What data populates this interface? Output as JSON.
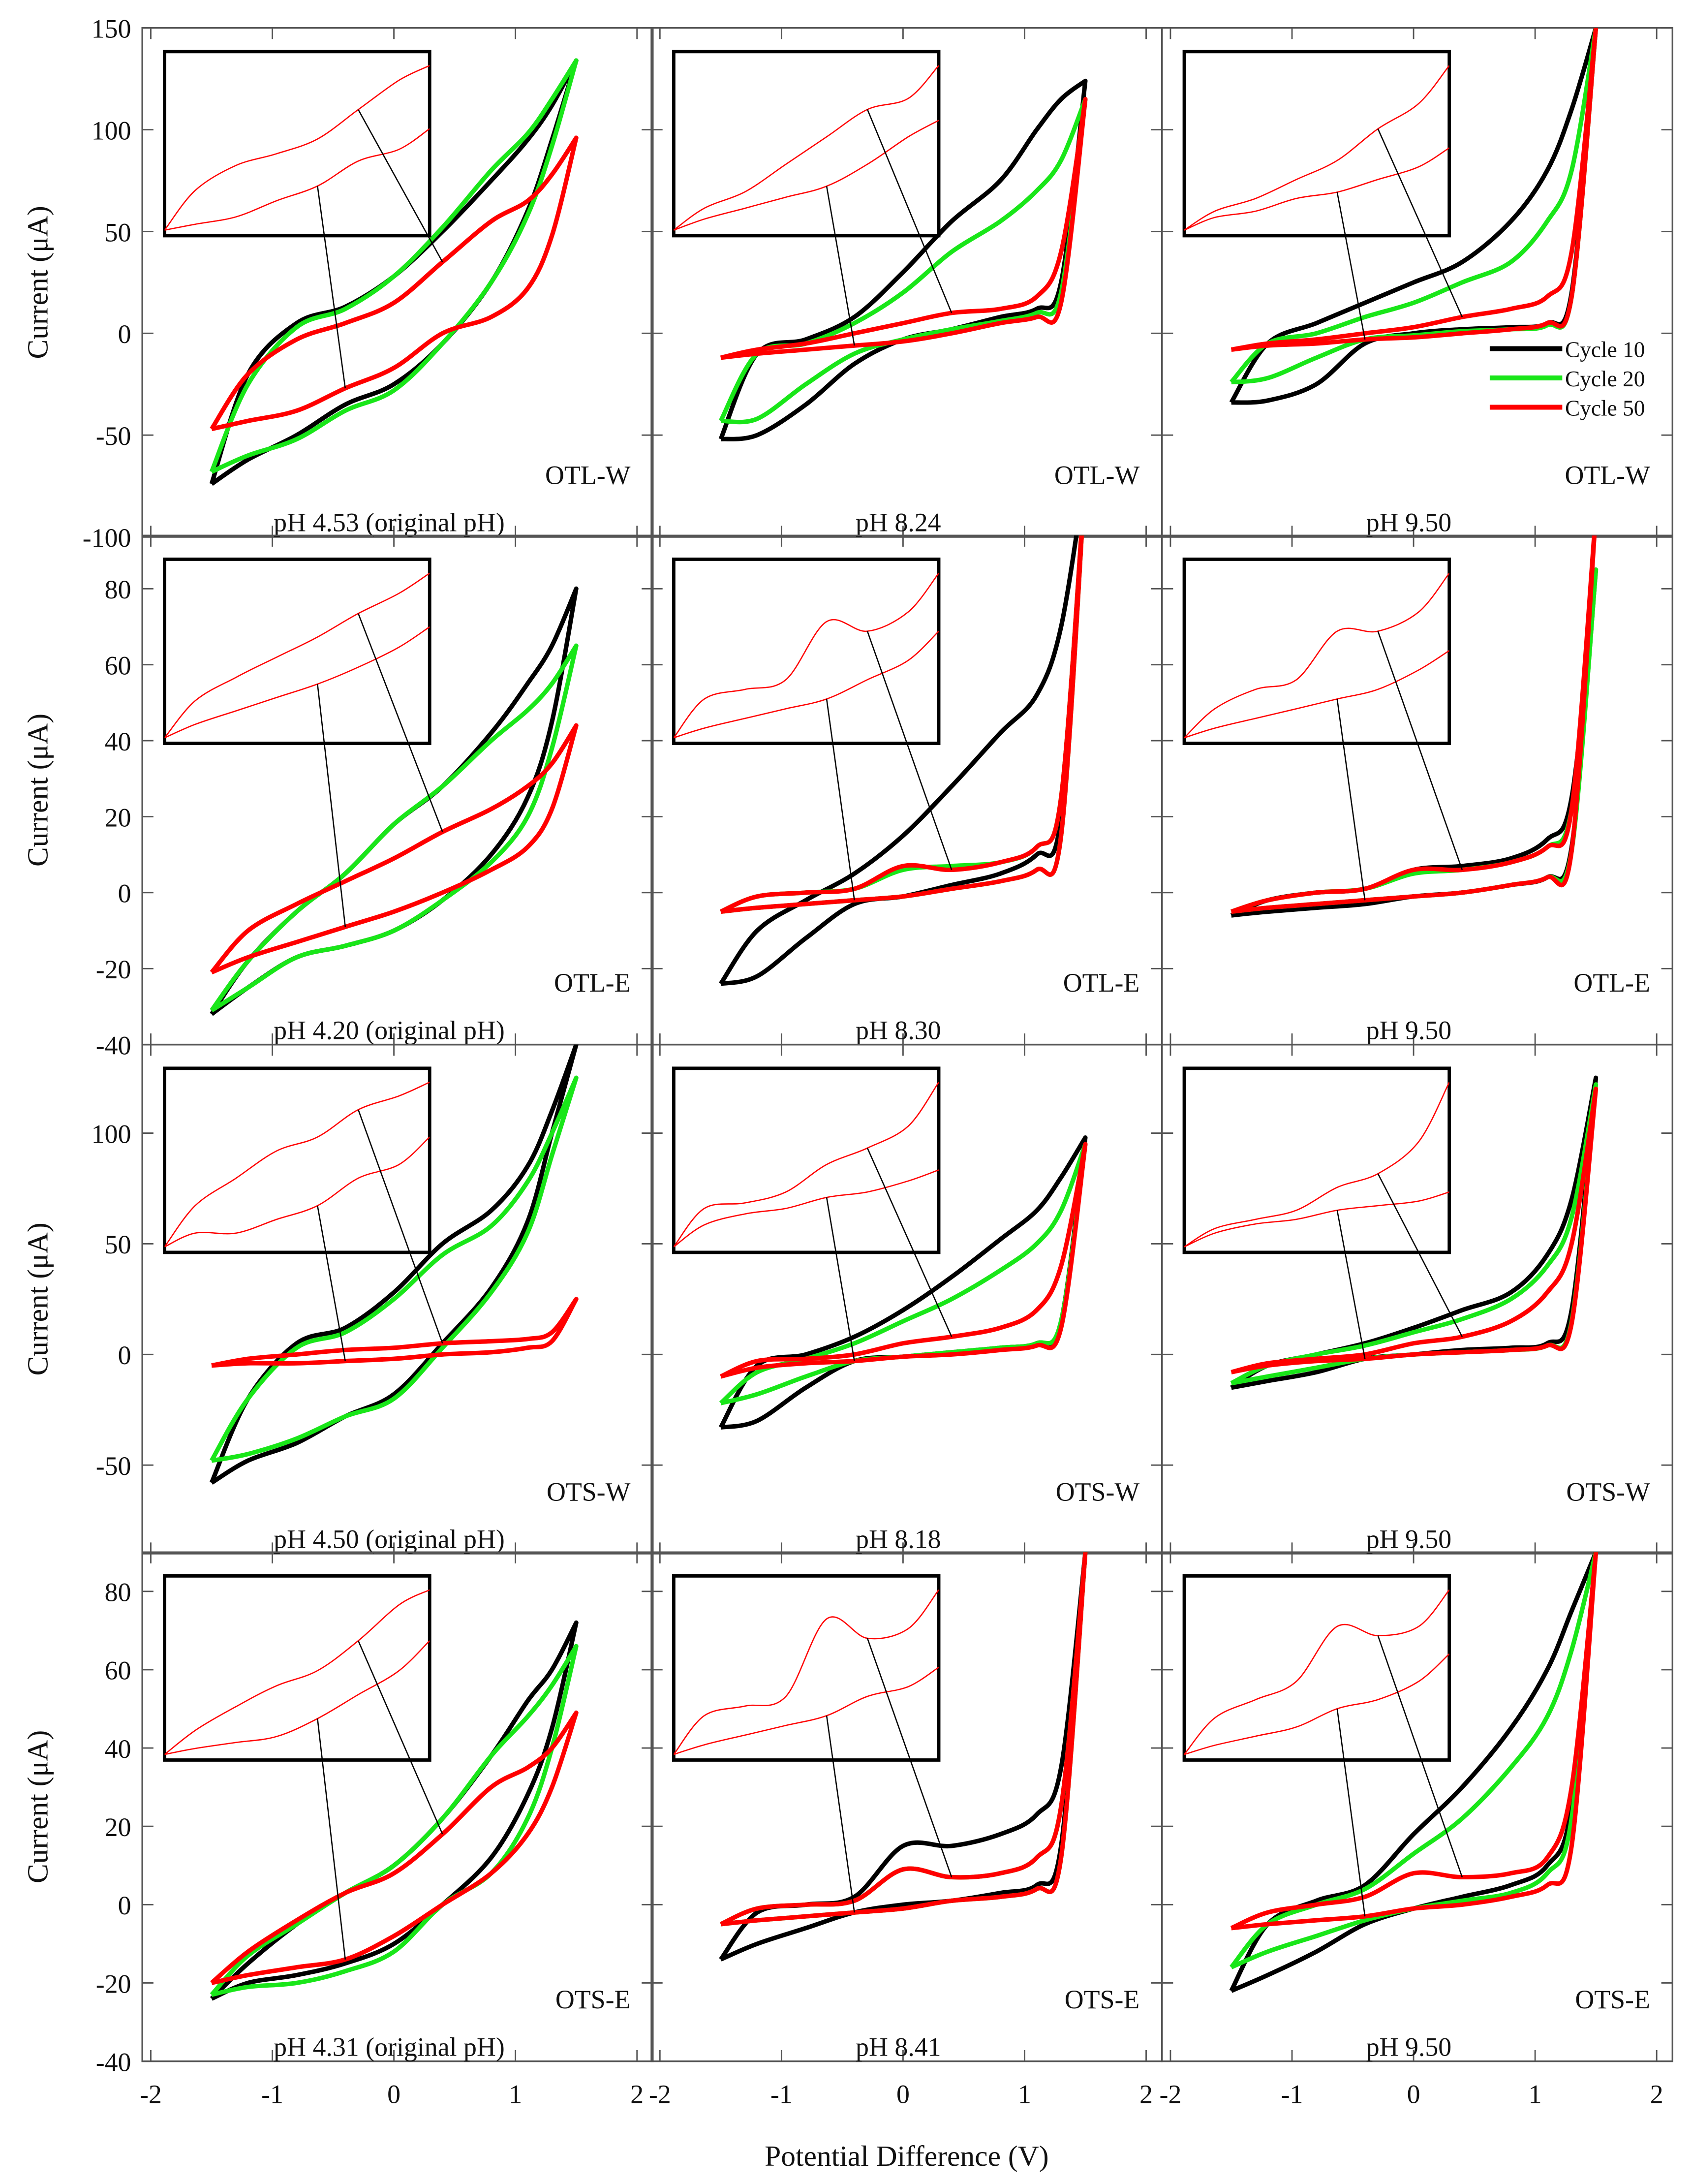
{
  "chart_data": {
    "type": "line",
    "grid": false,
    "xlabel": "Potential Difference (V)",
    "ylabel": "Current (μA)",
    "xlim": [
      -2.07,
      2.13
    ],
    "xticks": [
      -2,
      -1,
      0,
      1,
      2
    ],
    "x_samples": [
      -1.5,
      -1.2,
      -0.8,
      -0.4,
      0,
      0.4,
      0.8,
      1.1,
      1.3,
      1.5
    ],
    "legend": {
      "placement": "right side of top-right panel",
      "entries": [
        {
          "name": "Cycle 10",
          "color": "#000000"
        },
        {
          "name": "Cycle 20",
          "color": "#19e619"
        },
        {
          "name": "Cycle 50",
          "color": "#ff0000"
        }
      ]
    },
    "rows": [
      {
        "ylim": [
          -100,
          150
        ],
        "yticks": [
          -100,
          -50,
          0,
          50,
          100,
          150
        ]
      },
      {
        "ylim": [
          -40,
          94
        ],
        "yticks": [
          -40,
          -20,
          0,
          20,
          40,
          60,
          80
        ]
      },
      {
        "ylim": [
          -90,
          140
        ],
        "yticks": [
          -50,
          0,
          50,
          100
        ]
      },
      {
        "ylim": [
          -40,
          90
        ],
        "yticks": [
          -40,
          -20,
          0,
          20,
          40,
          60,
          80
        ]
      }
    ],
    "panels": [
      {
        "row": 0,
        "col": 0,
        "sample": "OTL-W",
        "ph": "pH 4.53 (original pH)",
        "series": [
          {
            "upper": [
              -74,
              -20,
              5,
              13,
              28,
              50,
              75,
              95,
              112,
              134
            ],
            "lower": [
              -74,
              -62,
              -50,
              -35,
              -25,
              -5,
              25,
              60,
              95,
              134
            ]
          },
          {
            "upper": [
              -68,
              -25,
              3,
              12,
              28,
              52,
              80,
              98,
              115,
              134
            ],
            "lower": [
              -68,
              -60,
              -52,
              -38,
              -28,
              -5,
              25,
              58,
              92,
              134
            ]
          },
          {
            "upper": [
              -47,
              -20,
              -3,
              5,
              15,
              35,
              55,
              65,
              78,
              96
            ],
            "lower": [
              -47,
              -43,
              -38,
              -27,
              -17,
              0,
              8,
              22,
              48,
              96
            ]
          }
        ]
      },
      {
        "row": 0,
        "col": 1,
        "sample": "OTL-W",
        "ph": "pH 8.24",
        "series": [
          {
            "upper": [
              -52,
              -10,
              -3,
              8,
              30,
              55,
              75,
              100,
              115,
              124
            ],
            "lower": [
              -52,
              -50,
              -35,
              -15,
              -3,
              2,
              8,
              12,
              25,
              124
            ]
          },
          {
            "upper": [
              -43,
              -10,
              -5,
              5,
              20,
              40,
              55,
              70,
              85,
              115
            ],
            "lower": [
              -43,
              -42,
              -25,
              -10,
              -3,
              2,
              6,
              10,
              20,
              115
            ]
          },
          {
            "upper": [
              -12,
              -8,
              -5,
              0,
              5,
              10,
              12,
              18,
              40,
              115
            ],
            "lower": [
              -12,
              -10,
              -8,
              -6,
              -4,
              0,
              5,
              8,
              15,
              115
            ]
          }
        ]
      },
      {
        "row": 0,
        "col": 2,
        "sample": "OTL-W",
        "ph": "pH 9.50",
        "series": [
          {
            "upper": [
              -34,
              -5,
              5,
              15,
              25,
              35,
              55,
              80,
              110,
              150
            ],
            "lower": [
              -34,
              -33,
              -25,
              -5,
              0,
              2,
              3,
              5,
              20,
              150
            ]
          },
          {
            "upper": [
              -24,
              -5,
              0,
              8,
              15,
              25,
              35,
              55,
              80,
              150
            ],
            "lower": [
              -24,
              -22,
              -12,
              -3,
              -1,
              1,
              2,
              4,
              18,
              150
            ]
          },
          {
            "upper": [
              -8,
              -5,
              -3,
              0,
              3,
              8,
              12,
              18,
              40,
              150
            ],
            "lower": [
              -8,
              -6,
              -5,
              -3,
              -2,
              0,
              2,
              5,
              18,
              150
            ]
          }
        ]
      },
      {
        "row": 1,
        "col": 0,
        "sample": "OTL-E",
        "ph": "pH 4.20 (original pH)",
        "series": [
          {
            "upper": [
              -32,
              -18,
              -5,
              5,
              18,
              28,
              42,
              55,
              65,
              80
            ],
            "lower": [
              -32,
              -25,
              -17,
              -14,
              -10,
              -2,
              10,
              25,
              45,
              80
            ]
          },
          {
            "upper": [
              -31,
              -18,
              -5,
              5,
              18,
              28,
              40,
              48,
              55,
              65
            ],
            "lower": [
              -31,
              -25,
              -17,
              -14,
              -10,
              -2,
              8,
              20,
              38,
              65
            ]
          },
          {
            "upper": [
              -21,
              -10,
              -3,
              3,
              9,
              16,
              22,
              28,
              34,
              44
            ],
            "lower": [
              -21,
              -17,
              -13,
              -9,
              -5,
              0,
              6,
              12,
              22,
              44
            ]
          }
        ]
      },
      {
        "row": 1,
        "col": 1,
        "sample": "OTL-E",
        "ph": "pH 8.30",
        "series": [
          {
            "upper": [
              -24,
              -10,
              -2,
              5,
              15,
              28,
              42,
              52,
              70,
              110
            ],
            "lower": [
              -24,
              -22,
              -12,
              -3,
              -1,
              2,
              5,
              10,
              20,
              110
            ]
          },
          {
            "upper": [
              -5,
              -1,
              0,
              1,
              6,
              7,
              8,
              12,
              25,
              110
            ],
            "lower": [
              -5,
              -4,
              -3,
              -2,
              -1,
              1,
              3,
              6,
              15,
              110
            ]
          },
          {
            "upper": [
              -5,
              -1,
              0,
              1,
              7,
              6,
              8,
              12,
              25,
              110
            ],
            "lower": [
              -5,
              -4,
              -3,
              -2,
              -1,
              1,
              3,
              6,
              15,
              110
            ]
          }
        ]
      },
      {
        "row": 1,
        "col": 2,
        "sample": "OTL-E",
        "ph": "pH 9.50",
        "series": [
          {
            "upper": [
              -6,
              -2,
              0,
              1,
              6,
              7,
              9,
              14,
              25,
              85
            ],
            "lower": [
              -6,
              -5,
              -4,
              -3,
              -1,
              0,
              2,
              4,
              12,
              85
            ]
          },
          {
            "upper": [
              -5,
              -2,
              0,
              1,
              5,
              6,
              8,
              12,
              22,
              85
            ],
            "lower": [
              -5,
              -4,
              -3,
              -2,
              -1,
              0,
              2,
              4,
              11,
              85
            ]
          },
          {
            "upper": [
              -5,
              -2,
              0,
              1,
              6,
              6,
              8,
              12,
              22,
              100
            ],
            "lower": [
              -5,
              -4,
              -3,
              -2,
              -1,
              0,
              2,
              4,
              11,
              100
            ]
          }
        ]
      },
      {
        "row": 2,
        "col": 0,
        "sample": "OTS-W",
        "ph": "pH 4.50 (original pH)",
        "series": [
          {
            "upper": [
              -58,
              -20,
              5,
              12,
              28,
              50,
              65,
              85,
              110,
              140
            ],
            "lower": [
              -58,
              -48,
              -40,
              -28,
              -18,
              5,
              30,
              60,
              100,
              140
            ]
          },
          {
            "upper": [
              -48,
              -20,
              3,
              10,
              25,
              45,
              58,
              78,
              100,
              125
            ],
            "lower": [
              -48,
              -45,
              -38,
              -28,
              -20,
              3,
              28,
              55,
              90,
              125
            ]
          },
          {
            "upper": [
              -5,
              -2,
              0,
              2,
              3,
              5,
              6,
              7,
              10,
              25
            ],
            "lower": [
              -5,
              -4,
              -4,
              -3,
              -2,
              0,
              1,
              3,
              6,
              25
            ]
          }
        ]
      },
      {
        "row": 2,
        "col": 1,
        "sample": "OTS-W",
        "ph": "pH 8.18",
        "series": [
          {
            "upper": [
              -33,
              -5,
              0,
              8,
              20,
              35,
              52,
              65,
              80,
              98
            ],
            "lower": [
              -33,
              -30,
              -15,
              -3,
              -1,
              1,
              3,
              5,
              15,
              98
            ]
          },
          {
            "upper": [
              -22,
              -8,
              -2,
              5,
              15,
              25,
              38,
              50,
              65,
              95
            ],
            "lower": [
              -22,
              -18,
              -10,
              -3,
              -1,
              1,
              3,
              5,
              15,
              95
            ]
          },
          {
            "upper": [
              -10,
              -3,
              -2,
              0,
              5,
              8,
              12,
              20,
              40,
              95
            ],
            "lower": [
              -10,
              -6,
              -4,
              -3,
              -1,
              0,
              2,
              4,
              12,
              95
            ]
          }
        ]
      },
      {
        "row": 2,
        "col": 2,
        "sample": "OTS-W",
        "ph": "pH 9.50",
        "series": [
          {
            "upper": [
              -15,
              -5,
              0,
              5,
              12,
              20,
              28,
              45,
              70,
              125
            ],
            "lower": [
              -15,
              -12,
              -8,
              -2,
              0,
              2,
              3,
              5,
              20,
              125
            ]
          },
          {
            "upper": [
              -13,
              -5,
              0,
              4,
              10,
              16,
              25,
              40,
              62,
              122
            ],
            "lower": [
              -13,
              -10,
              -6,
              -2,
              0,
              1,
              2,
              4,
              15,
              122
            ]
          },
          {
            "upper": [
              -8,
              -4,
              -2,
              0,
              5,
              8,
              15,
              28,
              50,
              120
            ],
            "lower": [
              -8,
              -5,
              -3,
              -2,
              0,
              1,
              2,
              4,
              14,
              120
            ]
          }
        ]
      },
      {
        "row": 3,
        "col": 0,
        "sample": "OTS-E",
        "ph": "pH 4.31 (original pH)",
        "series": [
          {
            "upper": [
              -24,
              -15,
              -5,
              3,
              10,
              22,
              38,
              52,
              60,
              72
            ],
            "lower": [
              -24,
              -20,
              -18,
              -15,
              -10,
              0,
              12,
              28,
              45,
              72
            ]
          },
          {
            "upper": [
              -23,
              -13,
              -5,
              3,
              10,
              22,
              38,
              48,
              56,
              66
            ],
            "lower": [
              -23,
              -21,
              -20,
              -17,
              -12,
              0,
              8,
              22,
              40,
              66
            ]
          },
          {
            "upper": [
              -20,
              -12,
              -4,
              3,
              8,
              18,
              30,
              35,
              40,
              49
            ],
            "lower": [
              -20,
              -18,
              -16,
              -14,
              -8,
              0,
              8,
              18,
              30,
              49
            ]
          }
        ]
      },
      {
        "row": 3,
        "col": 1,
        "sample": "OTS-E",
        "ph": "pH 8.41",
        "series": [
          {
            "upper": [
              -14,
              -2,
              0,
              2,
              15,
              15,
              18,
              23,
              35,
              90
            ],
            "lower": [
              -14,
              -10,
              -6,
              -2,
              0,
              1,
              3,
              5,
              15,
              90
            ]
          },
          {
            "upper": [
              -5,
              -1,
              0,
              1,
              9,
              7,
              8,
              12,
              25,
              90
            ],
            "lower": [
              -5,
              -4,
              -3,
              -2,
              -1,
              1,
              2,
              4,
              12,
              90
            ]
          },
          {
            "upper": [
              -5,
              -1,
              0,
              1,
              9,
              7,
              8,
              12,
              25,
              90
            ],
            "lower": [
              -5,
              -4,
              -3,
              -2,
              -1,
              1,
              2,
              4,
              12,
              90
            ]
          }
        ]
      },
      {
        "row": 3,
        "col": 2,
        "sample": "OTS-E",
        "ph": "pH 9.50",
        "series": [
          {
            "upper": [
              -22,
              -5,
              1,
              5,
              18,
              30,
              45,
              60,
              75,
              90
            ],
            "lower": [
              -22,
              -18,
              -12,
              -5,
              -1,
              2,
              5,
              10,
              25,
              90
            ]
          },
          {
            "upper": [
              -16,
              -5,
              0,
              4,
              13,
              22,
              35,
              48,
              65,
              90
            ],
            "lower": [
              -16,
              -12,
              -8,
              -4,
              -1,
              1,
              3,
              8,
              22,
              90
            ]
          },
          {
            "upper": [
              -6,
              -2,
              0,
              2,
              8,
              7,
              8,
              12,
              30,
              90
            ],
            "lower": [
              -6,
              -5,
              -4,
              -3,
              -1,
              0,
              2,
              5,
              15,
              90
            ]
          }
        ]
      }
    ]
  }
}
